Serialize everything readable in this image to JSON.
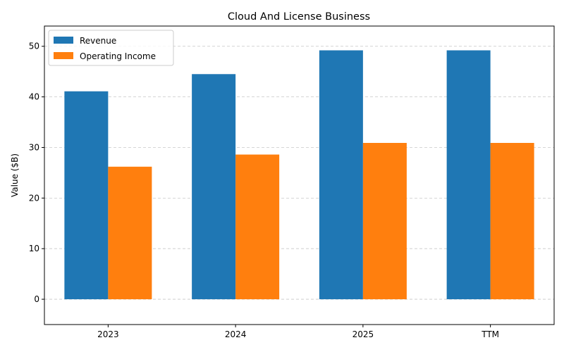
{
  "chart_data": {
    "type": "bar",
    "title": "Cloud And License Business",
    "xlabel": "",
    "ylabel": "Value ($B)",
    "categories": [
      "2023",
      "2024",
      "2025",
      "TTM"
    ],
    "series": [
      {
        "name": "Revenue",
        "color": "#1f77b4",
        "values": [
          41.1,
          44.5,
          49.2,
          49.2
        ]
      },
      {
        "name": "Operating Income",
        "color": "#ff7f0e",
        "values": [
          26.2,
          28.6,
          30.9,
          30.9
        ]
      }
    ],
    "ylim": [
      -5,
      54
    ],
    "yticks": [
      0,
      10,
      20,
      30,
      40,
      50
    ],
    "grid": true,
    "legend_position": "top-left"
  }
}
